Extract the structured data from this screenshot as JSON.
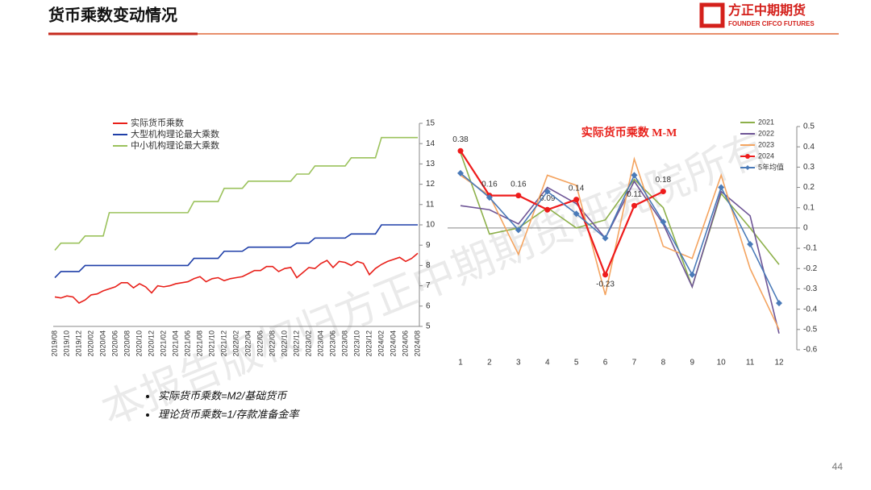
{
  "header": {
    "title": "货币乘数变动情况",
    "logo_cn": "方正中期期货",
    "logo_en": "FOUNDER CIFCO FUTURES"
  },
  "watermark": "本报告版权归方正中期期货研究院所有",
  "bullets": [
    "实际货币乘数=M2/基础货币",
    "理论货币乘数=1/存款准备金率"
  ],
  "page_number": "44",
  "chart_data": [
    {
      "type": "line",
      "legend": "upper left",
      "yaxis_side": "right",
      "categories": [
        "2019/08",
        null,
        "2019/10",
        null,
        "2019/12",
        null,
        "2020/02",
        null,
        "2020/04",
        null,
        "2020/06",
        null,
        "2020/08",
        null,
        "2020/10",
        null,
        "2020/12",
        null,
        "2021/02",
        null,
        "2021/04",
        null,
        "2021/06",
        null,
        "2021/08",
        null,
        "2021/10",
        null,
        "2021/12",
        null,
        "2022/02",
        null,
        "2022/04",
        null,
        "2022/06",
        null,
        "2022/08",
        null,
        "2022/10",
        null,
        "2022/12",
        null,
        "2023/02",
        null,
        "2023/04",
        null,
        "2023/06",
        null,
        "2023/08",
        null,
        "2023/10",
        null,
        "2023/12",
        null,
        "2024/02",
        null,
        "2024/04",
        null,
        "2024/06",
        null,
        "2024/08"
      ],
      "ylim": [
        5,
        15
      ],
      "yticks": [
        5,
        6,
        7,
        8,
        9,
        10,
        11,
        12,
        13,
        14,
        15
      ],
      "series": [
        {
          "name": "实际货币乘数",
          "color": "#e8201a",
          "values": [
            6.45,
            6.4,
            6.5,
            6.45,
            6.15,
            6.3,
            6.55,
            6.6,
            6.75,
            6.85,
            6.95,
            7.15,
            7.15,
            6.9,
            7.1,
            6.95,
            6.65,
            7.0,
            6.95,
            7.0,
            7.1,
            7.15,
            7.2,
            7.35,
            7.45,
            7.2,
            7.35,
            7.4,
            7.25,
            7.35,
            7.4,
            7.45,
            7.6,
            7.75,
            7.75,
            7.95,
            7.95,
            7.7,
            7.85,
            7.9,
            7.4,
            7.65,
            7.9,
            7.85,
            8.1,
            8.25,
            7.9,
            8.2,
            8.15,
            8.0,
            8.2,
            8.1,
            7.55,
            7.85,
            8.05,
            8.2,
            8.3,
            8.4,
            8.2,
            8.35,
            8.6
          ]
        },
        {
          "name": "大型机构理论最大乘数",
          "color": "#1f3fa8",
          "values": [
            7.4,
            7.7,
            7.7,
            7.7,
            7.7,
            8.0,
            8.0,
            8.0,
            8.0,
            8.0,
            8.0,
            8.0,
            8.0,
            8.0,
            8.0,
            8.0,
            8.0,
            8.0,
            8.0,
            8.0,
            8.0,
            8.0,
            8.0,
            8.35,
            8.35,
            8.35,
            8.35,
            8.35,
            8.7,
            8.7,
            8.7,
            8.7,
            8.9,
            8.9,
            8.9,
            8.9,
            8.9,
            8.9,
            8.9,
            8.9,
            9.1,
            9.1,
            9.1,
            9.35,
            9.35,
            9.35,
            9.35,
            9.35,
            9.35,
            9.55,
            9.55,
            9.55,
            9.55,
            9.55,
            10.0,
            10.0,
            10.0,
            10.0,
            10.0,
            10.0,
            10.0
          ]
        },
        {
          "name": "中小机构理论最大乘数",
          "color": "#9bc25c",
          "values": [
            8.75,
            9.1,
            9.1,
            9.1,
            9.1,
            9.45,
            9.45,
            9.45,
            9.45,
            10.6,
            10.6,
            10.6,
            10.6,
            10.6,
            10.6,
            10.6,
            10.6,
            10.6,
            10.6,
            10.6,
            10.6,
            10.6,
            10.6,
            11.15,
            11.15,
            11.15,
            11.15,
            11.15,
            11.8,
            11.8,
            11.8,
            11.8,
            12.15,
            12.15,
            12.15,
            12.15,
            12.15,
            12.15,
            12.15,
            12.15,
            12.5,
            12.5,
            12.5,
            12.9,
            12.9,
            12.9,
            12.9,
            12.9,
            12.9,
            13.3,
            13.3,
            13.3,
            13.3,
            13.3,
            14.3,
            14.3,
            14.3,
            14.3,
            14.3,
            14.3,
            14.3
          ]
        }
      ]
    },
    {
      "type": "line",
      "title": "实际货币乘数 M-M",
      "legend": "upper right",
      "yaxis_side": "right",
      "categories": [
        1,
        2,
        3,
        4,
        5,
        6,
        7,
        8,
        9,
        10,
        11,
        12
      ],
      "ylim": [
        -0.6,
        0.5
      ],
      "yticks": [
        0.5,
        0.4,
        0.3,
        0.2,
        0.1,
        0,
        -0.1,
        -0.2,
        -0.3,
        -0.4,
        -0.5,
        -0.6
      ],
      "series": [
        {
          "name": "2021",
          "color": "#8db04a",
          "values": [
            0.37,
            -0.03,
            0.0,
            0.1,
            0.0,
            0.04,
            0.24,
            0.1,
            -0.29,
            0.17,
            0.0,
            -0.18
          ]
        },
        {
          "name": "2022",
          "color": "#6e5596",
          "values": [
            0.11,
            0.09,
            0.02,
            0.2,
            0.12,
            -0.05,
            0.23,
            0.02,
            -0.29,
            0.18,
            0.06,
            -0.52
          ]
        },
        {
          "name": "2023",
          "color": "#f4a460",
          "values": [
            0.26,
            0.16,
            -0.13,
            0.26,
            0.21,
            -0.33,
            0.34,
            -0.09,
            -0.15,
            0.26,
            -0.2,
            -0.5
          ]
        },
        {
          "name": "2024",
          "color": "#ee1c1c",
          "marker": "circle",
          "data_labels": true,
          "values": [
            0.38,
            0.16,
            0.16,
            0.09,
            0.14,
            -0.23,
            0.11,
            0.18,
            null,
            null,
            null,
            null
          ]
        },
        {
          "name": "5年均值",
          "color": "#4a7ab8",
          "marker": "diamond",
          "values": [
            0.27,
            0.15,
            -0.01,
            0.18,
            0.07,
            -0.05,
            0.26,
            0.03,
            -0.23,
            0.2,
            -0.08,
            -0.37
          ]
        }
      ]
    }
  ]
}
